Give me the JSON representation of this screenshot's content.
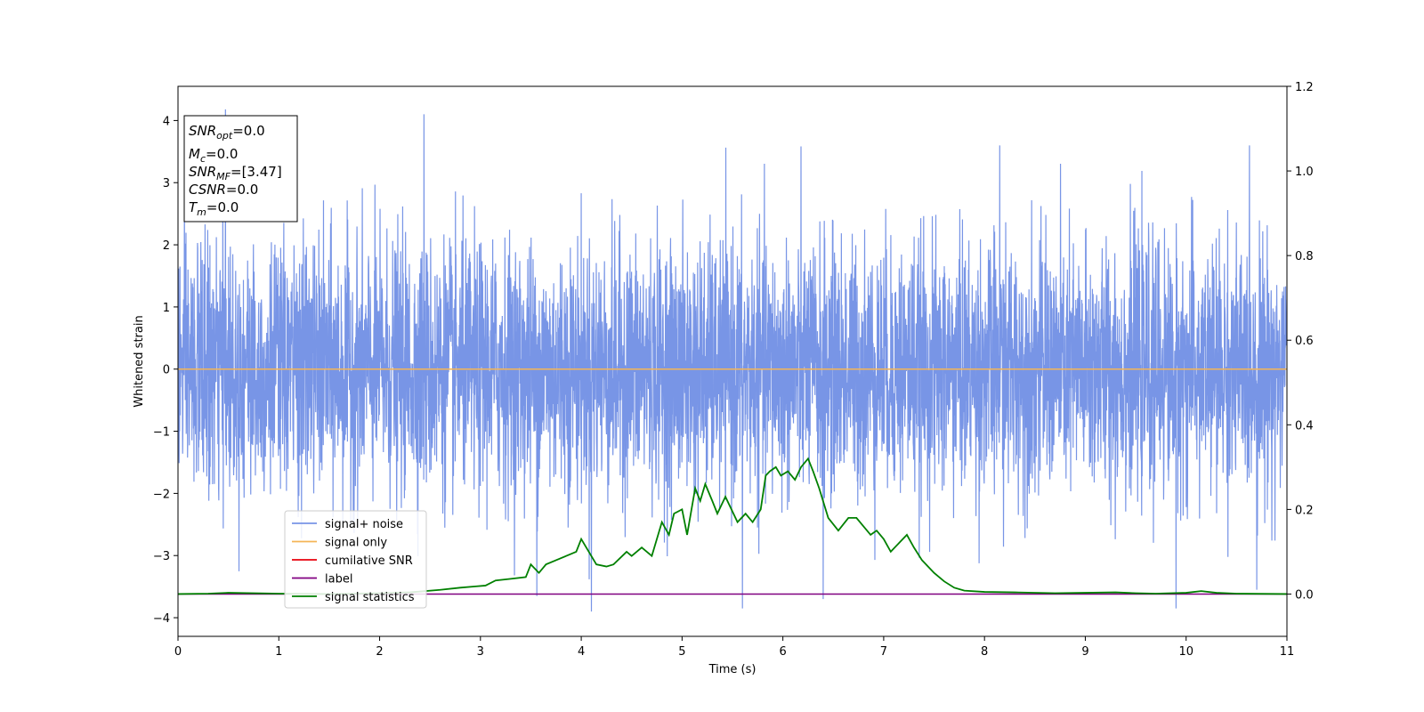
{
  "chart_data": {
    "type": "line",
    "xlabel": "Time (s)",
    "ylabel": "Whitened strain",
    "xlim": [
      0,
      11
    ],
    "ylim_left": [
      -4.3,
      4.55
    ],
    "ylim_right": [
      -0.1,
      1.2
    ],
    "x_ticks": [
      0,
      1,
      2,
      3,
      4,
      5,
      6,
      7,
      8,
      9,
      10,
      11
    ],
    "y_ticks_left": [
      -4,
      -3,
      -2,
      -1,
      0,
      1,
      2,
      3,
      4
    ],
    "y_ticks_right": [
      0.0,
      0.2,
      0.4,
      0.6,
      0.8,
      1.0,
      1.2
    ],
    "grid": false,
    "legend_placement": "lower-left",
    "info_box": {
      "placement": "top-left",
      "lines": [
        {
          "symbol": "SNR",
          "sub": "opt",
          "value": "=0.0"
        },
        {
          "symbol": "M",
          "sub": "c",
          "value": "=0.0"
        },
        {
          "symbol": "SNR",
          "sub": "MF",
          "value": "=[3.47]"
        },
        {
          "symbol": "CSNR",
          "sub": "",
          "value": "=0.0"
        },
        {
          "symbol": "T",
          "sub": "m",
          "value": "=0.0"
        }
      ]
    },
    "series": [
      {
        "name": "signal+ noise",
        "color": "#7895e6",
        "axis": "left",
        "kind": "noise",
        "sigma": 1.0,
        "peaks": [
          [
            0.47,
            4.18
          ],
          [
            2.44,
            4.1
          ],
          [
            8.15,
            3.6
          ],
          [
            4.1,
            -3.9
          ],
          [
            5.6,
            -3.85
          ],
          [
            9.9,
            -3.85
          ],
          [
            3.56,
            -3.65
          ],
          [
            6.4,
            -3.7
          ],
          [
            10.7,
            -3.55
          ]
        ]
      },
      {
        "name": "signal only",
        "color": "#f4b556",
        "axis": "left",
        "x": [
          0,
          11
        ],
        "y": [
          0,
          0
        ]
      },
      {
        "name": "cumilative SNR",
        "color": "#e8000b",
        "axis": "left",
        "x": [],
        "y": []
      },
      {
        "name": "label",
        "color": "#800080",
        "axis": "right",
        "x": [
          0,
          11
        ],
        "y": [
          0,
          0
        ]
      },
      {
        "name": "signal statistics",
        "color": "#008000",
        "axis": "right",
        "x": [
          0,
          0.3,
          0.5,
          1.0,
          1.5,
          2.0,
          2.3,
          2.6,
          2.8,
          2.95,
          3.05,
          3.15,
          3.3,
          3.45,
          3.5,
          3.58,
          3.65,
          3.75,
          3.85,
          3.95,
          4.0,
          4.05,
          4.15,
          4.25,
          4.32,
          4.45,
          4.5,
          4.55,
          4.6,
          4.7,
          4.8,
          4.87,
          4.92,
          5.0,
          5.05,
          5.13,
          5.18,
          5.23,
          5.3,
          5.35,
          5.43,
          5.55,
          5.63,
          5.7,
          5.78,
          5.83,
          5.87,
          5.93,
          5.98,
          6.05,
          6.12,
          6.18,
          6.25,
          6.3,
          6.36,
          6.45,
          6.55,
          6.65,
          6.73,
          6.8,
          6.87,
          6.93,
          7.0,
          7.07,
          7.15,
          7.23,
          7.3,
          7.38,
          7.5,
          7.6,
          7.7,
          7.8,
          8.0,
          8.3,
          8.7,
          9.0,
          9.3,
          9.5,
          9.7,
          10.0,
          10.15,
          10.3,
          10.5,
          11.0
        ],
        "y": [
          0.0,
          0.001,
          0.003,
          0.001,
          0.0,
          0.002,
          0.004,
          0.01,
          0.015,
          0.018,
          0.02,
          0.032,
          0.036,
          0.04,
          0.07,
          0.05,
          0.07,
          0.08,
          0.09,
          0.1,
          0.13,
          0.11,
          0.07,
          0.065,
          0.07,
          0.1,
          0.09,
          0.1,
          0.11,
          0.09,
          0.17,
          0.14,
          0.19,
          0.2,
          0.14,
          0.25,
          0.22,
          0.26,
          0.22,
          0.19,
          0.23,
          0.17,
          0.19,
          0.17,
          0.2,
          0.28,
          0.29,
          0.3,
          0.28,
          0.29,
          0.27,
          0.3,
          0.32,
          0.29,
          0.25,
          0.18,
          0.15,
          0.18,
          0.18,
          0.16,
          0.14,
          0.15,
          0.13,
          0.1,
          0.12,
          0.14,
          0.11,
          0.08,
          0.05,
          0.03,
          0.015,
          0.008,
          0.005,
          0.004,
          0.002,
          0.003,
          0.004,
          0.002,
          0.001,
          0.003,
          0.007,
          0.003,
          0.001,
          0.0
        ]
      }
    ]
  }
}
